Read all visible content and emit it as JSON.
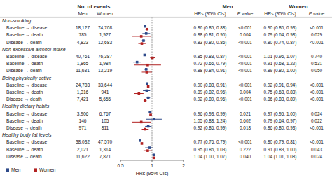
{
  "chart_data": {
    "type": "forest",
    "log": "x",
    "xlim": [
      0.5,
      2.0
    ],
    "xticks": [
      0.5,
      1,
      2
    ],
    "xlabel": "HRs (95% CIs)",
    "reference_line": 1,
    "legend": "lower left",
    "header_top": [
      "No. of events",
      "Men",
      "Women"
    ],
    "header_sub": [
      "Men",
      "Women",
      "HRs (95% CIs)",
      "P value",
      "HRs (95% CIs)",
      "P value"
    ],
    "groups": [
      {
        "name": "Non-smoking",
        "categories": [
          "Baseline → disease",
          "Baseline → death",
          "Disease → death"
        ]
      },
      {
        "name": "Non-excessive alcohol intake",
        "categories": [
          "Baseline → disease",
          "Baseline → death",
          "Disease → death"
        ]
      },
      {
        "name": "Being physically active",
        "categories": [
          "Baseline → disease",
          "Baseline → death",
          "Disease → death"
        ]
      },
      {
        "name": "Healthy dietary habits",
        "categories": [
          "Baseline → disease",
          "Baseline → death",
          "Disease → death"
        ]
      },
      {
        "name": "Healthy body fat levels",
        "categories": [
          "Baseline → disease",
          "Baseline → death",
          "Disease → death"
        ]
      }
    ],
    "series": [
      {
        "name": "Men",
        "color": "#2e4a8a",
        "events": [
          "18,127",
          "785",
          "4,823",
          "40,761",
          "1,865",
          "11,631",
          "24,783",
          "1,316",
          "7,421",
          "3,906",
          "146",
          "971",
          "38,032",
          "2,021",
          "11,622"
        ],
        "values": [
          0.86,
          0.88,
          0.83,
          0.85,
          0.72,
          0.88,
          0.9,
          0.89,
          0.92,
          0.96,
          1.05,
          0.92,
          0.77,
          0.95,
          1.04
        ],
        "lo": [
          0.85,
          0.81,
          0.8,
          0.83,
          0.66,
          0.84,
          0.88,
          0.82,
          0.89,
          0.93,
          0.88,
          0.86,
          0.76,
          0.86,
          1.0
        ],
        "hi": [
          0.88,
          0.96,
          0.86,
          0.87,
          0.79,
          0.91,
          0.91,
          0.96,
          0.96,
          0.99,
          1.24,
          0.99,
          0.79,
          1.03,
          1.07
        ],
        "value_labels": [
          "0.86 (0.85, 0.88)",
          "0.88 (0.81, 0.96)",
          "0.83 (0.80, 0.86)",
          "0.85 (0.83, 0.87)",
          "0.72 (0.66, 0.79)",
          "0.88 (0.84, 0.91)",
          "0.90 (0.88, 0.91)",
          "0.89 (0.82, 0.96)",
          "0.92 (0.89, 0.96)",
          "0.96 (0.93, 0.99)",
          "1.05 (0.88, 1.24)",
          "0.92 (0.86, 0.99)",
          "0.77 (0.76, 0.79)",
          "0.95 (0.86, 1.03)",
          "1.04 (1.00, 1.07)"
        ],
        "p_values": [
          "<0.001",
          "0.004",
          "<0.001",
          "<0.001",
          "<0.001",
          "<0.001",
          "<0.001",
          "0.004",
          "<0.001",
          "0.021",
          "0.602",
          "0.018",
          "<0.001",
          "0.222",
          "0.040"
        ]
      },
      {
        "name": "Women",
        "color": "#b22222",
        "events": [
          "74,708",
          "1,927",
          "12,683",
          "76,387",
          "1,984",
          "13,219",
          "33,644",
          "941",
          "5,655",
          "6,767",
          "105",
          "811",
          "47,570",
          "1,314",
          "7,871"
        ],
        "values": [
          0.9,
          0.79,
          0.8,
          1.01,
          0.91,
          0.89,
          0.92,
          0.75,
          0.86,
          0.97,
          0.79,
          0.86,
          0.8,
          0.91,
          1.04
        ],
        "lo": [
          0.86,
          0.64,
          0.74,
          0.96,
          0.68,
          0.8,
          0.91,
          0.68,
          0.83,
          0.95,
          0.64,
          0.8,
          0.79,
          0.83,
          1.01
        ],
        "hi": [
          0.93,
          0.98,
          0.87,
          1.07,
          1.22,
          1.0,
          0.94,
          0.83,
          0.89,
          1.0,
          0.97,
          0.93,
          0.81,
          1.0,
          1.08
        ],
        "value_labels": [
          "0.90 (0.86, 0.93)",
          "0.79 (0.64, 0.98)",
          "0.80 (0.74, 0.87)",
          "1.01 (0.96, 1.07)",
          "0.91 (0.68, 1.22)",
          "0.89 (0.80, 1.00)",
          "0.92 (0.91, 0.94)",
          "0.75 (0.68, 0.83)",
          "0.86 (0.83, 0.89)",
          "0.97 (0.95, 1.00)",
          "0.79 (0.64, 0.97)",
          "0.86 (0.80, 0.93)",
          "0.80 (0.79, 0.81)",
          "0.91 (0.83, 1.00)",
          "1.04 (1.01, 1.08)"
        ],
        "p_values": [
          "<0.001",
          "0.029",
          "<0.001",
          "0.740",
          "0.531",
          "0.050",
          "<0.001",
          "<0.001",
          "<0.001",
          "0.024",
          "0.022",
          "<0.001",
          "<0.001",
          "0.043",
          "0.024"
        ]
      }
    ]
  }
}
